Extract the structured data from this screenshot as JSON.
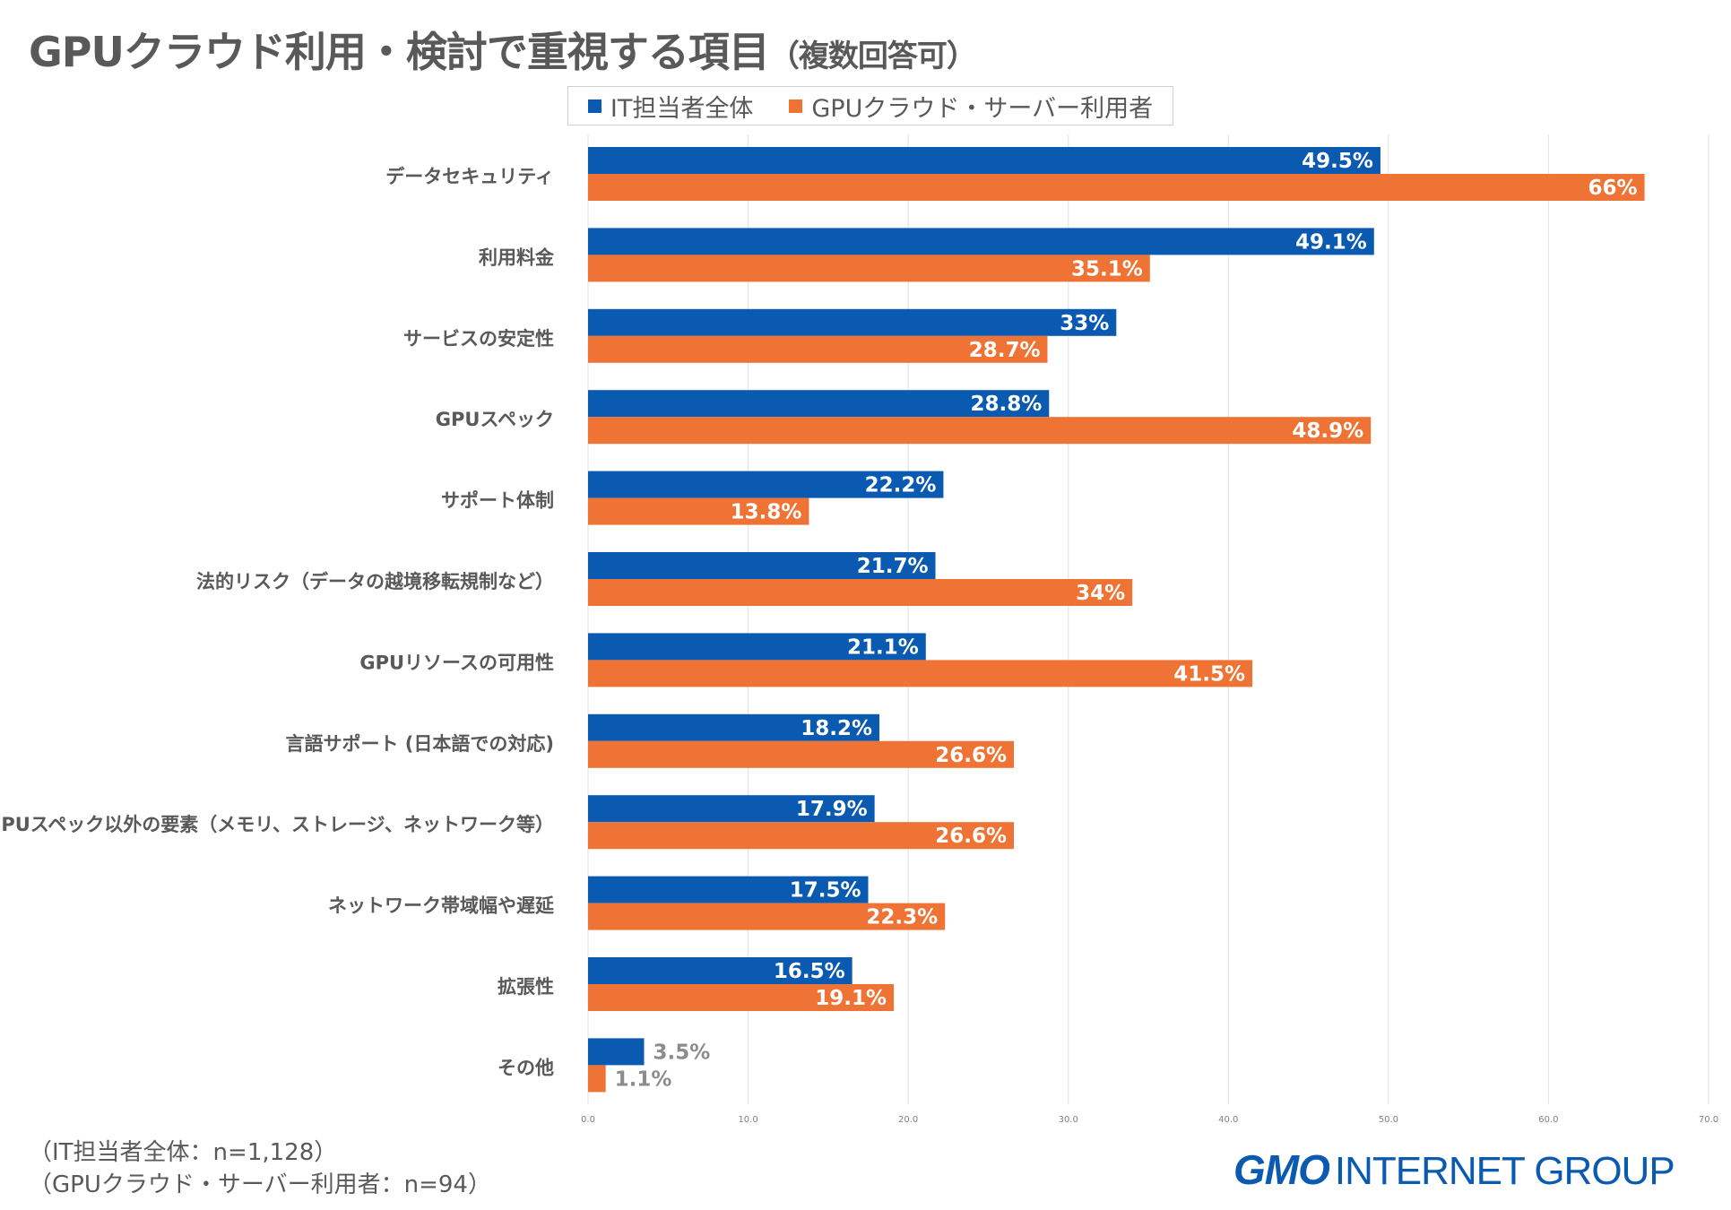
{
  "title": "GPUクラウド利用・検討で重視する項目",
  "title_sub": "（複数回答可）",
  "notes": [
    "（IT担当者全体：n=1,128）",
    "（GPUクラウド・サーバー利用者：n=94）"
  ],
  "logo": {
    "mark": "GMO",
    "text": "INTERNET GROUP"
  },
  "colors": {
    "series1": "#0a5ab1",
    "series2": "#ee7334",
    "grid": "#e6e6e6",
    "label_light": "#ffffff",
    "label_dark": "#8c8c8c",
    "category": "#595959"
  },
  "chart_data": {
    "type": "bar",
    "orientation": "horizontal",
    "categories": [
      "データセキュリティ",
      "利用料金",
      "サービスの安定性",
      "GPUスペック",
      "サポート体制",
      "法的リスク（データの越境移転規制など）",
      "GPUリソースの可用性",
      "言語サポート (日本語での対応)",
      "GPUスペック以外の要素（メモリ、ストレージ、ネットワーク等）",
      "ネットワーク帯域幅や遅延",
      "拡張性",
      "その他"
    ],
    "series": [
      {
        "name": "IT担当者全体",
        "values": [
          49.5,
          49.1,
          33,
          28.8,
          22.2,
          21.7,
          21.1,
          18.2,
          17.9,
          17.5,
          16.5,
          3.5
        ],
        "labels": [
          "49.5%",
          "49.1%",
          "33%",
          "28.8%",
          "22.2%",
          "21.7%",
          "21.1%",
          "18.2%",
          "17.9%",
          "17.5%",
          "16.5%",
          "3.5%"
        ]
      },
      {
        "name": "GPUクラウド・サーバー利用者",
        "values": [
          66,
          35.1,
          28.7,
          48.9,
          13.8,
          34,
          41.5,
          26.6,
          26.6,
          22.3,
          19.1,
          1.1
        ],
        "labels": [
          "66%",
          "35.1%",
          "28.7%",
          "48.9%",
          "13.8%",
          "34%",
          "41.5%",
          "26.6%",
          "26.6%",
          "22.3%",
          "19.1%",
          "1.1%"
        ]
      }
    ],
    "xlim": [
      0,
      70
    ],
    "xticks": [
      "0.0",
      "10.0",
      "20.0",
      "30.0",
      "40.0",
      "50.0",
      "60.0",
      "70.0"
    ],
    "grid": true,
    "legend": "top"
  }
}
